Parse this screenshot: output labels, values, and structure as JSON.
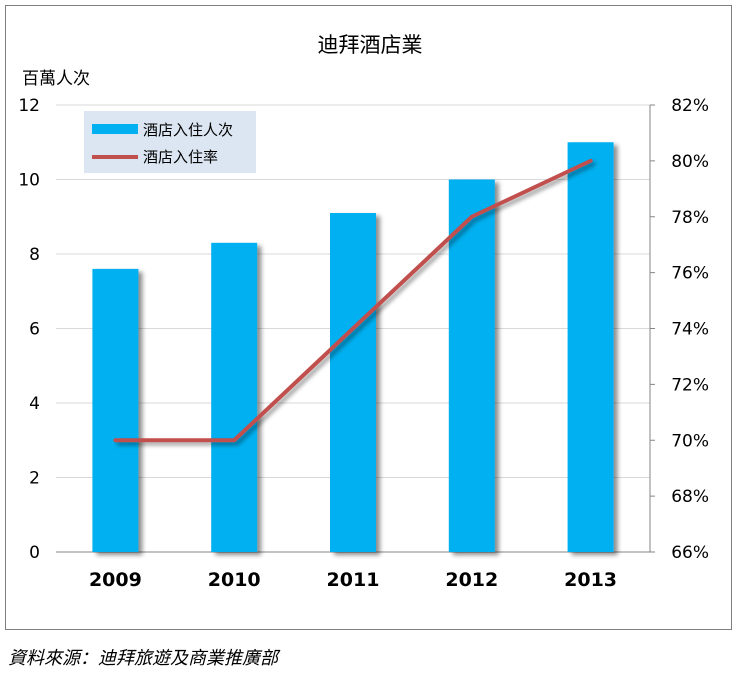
{
  "chart_data": {
    "type": "bar",
    "title": "迪拜酒店業",
    "ylabel": "百萬人次",
    "categories": [
      "2009",
      "2010",
      "2011",
      "2012",
      "2013"
    ],
    "ylim": [
      0,
      12
    ],
    "yticks": [
      "0",
      "2",
      "4",
      "6",
      "8",
      "10",
      "12"
    ],
    "y2lim": [
      66,
      82
    ],
    "y2ticks": [
      "66%",
      "68%",
      "70%",
      "72%",
      "74%",
      "76%",
      "78%",
      "80%",
      "82%"
    ],
    "grid": true,
    "legend_position": "top-left",
    "series": [
      {
        "name": "酒店入住人次",
        "type": "bar",
        "axis": "left",
        "color": "#00b0f0",
        "values": [
          7.6,
          8.3,
          9.1,
          10.0,
          11.0
        ]
      },
      {
        "name": "酒店入住率",
        "type": "line",
        "axis": "right",
        "color": "#c0504d",
        "values": [
          70,
          70,
          74,
          78,
          80
        ]
      }
    ]
  },
  "source": "資料來源：迪拜旅遊及商業推廣部"
}
